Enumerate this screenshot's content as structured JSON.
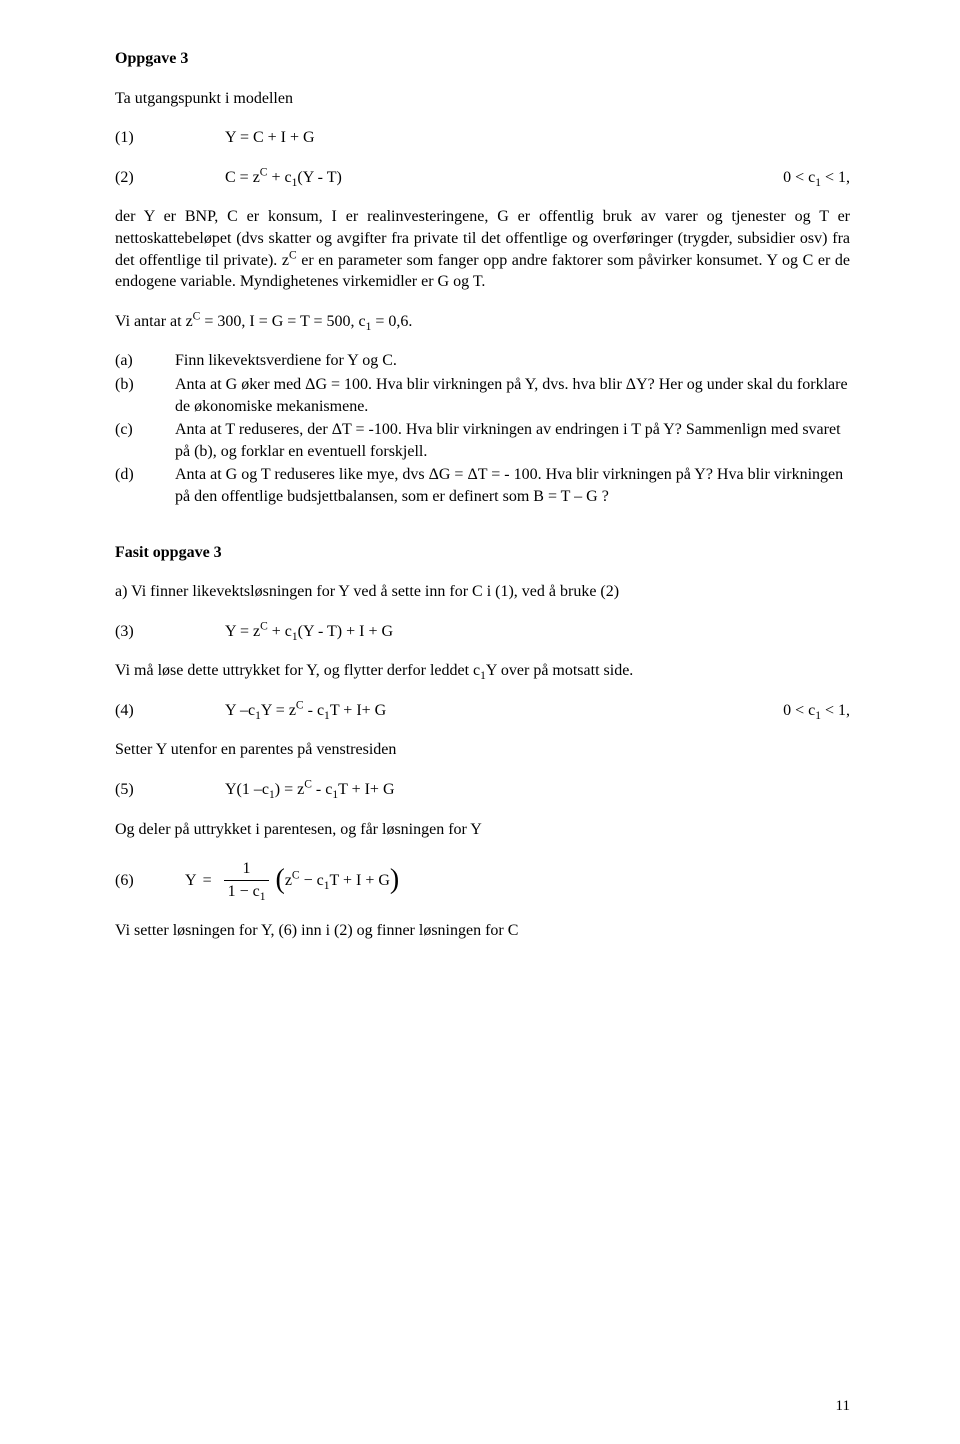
{
  "heading": "Oppgave 3",
  "intro": "Ta utgangspunkt i modellen",
  "eq1": {
    "label": "(1)",
    "expr": "Y = C + I + G"
  },
  "eq2": {
    "label": "(2)",
    "expr_html": "C = z<sup>C</sup> + c<sub>1</sub>(Y - T)",
    "cond_html": "0 &lt; c<sub>1</sub> &lt; 1,"
  },
  "para1_html": "der Y er BNP, C er konsum, I er realinvesteringene, G er offentlig bruk av varer og tjenester og T er nettoskattebeløpet (dvs skatter og avgifter fra private til det offentlige og overføringer (trygder, subsidier osv) fra det offentlige til private). z<sup>C</sup> er en parameter som fanger opp andre faktorer som påvirker konsumet. Y og C er de endogene variable. Myndighetenes virkemidler er G og T.",
  "para2_html": "Vi antar at z<sup>C</sup> = 300, I = G = T = 500, c<sub>1</sub> = 0,6.",
  "subs": [
    {
      "key": "(a)",
      "text_html": "Finn likevektsverdiene for Y og C."
    },
    {
      "key": "(b)",
      "text_html": "Anta at G øker med ΔG = 100. Hva blir virkningen på Y, dvs. hva blir ΔY? Her og under skal du forklare de økonomiske mekanismene."
    },
    {
      "key": "(c)",
      "text_html": "Anta at T reduseres, der ΔT = -100. Hva blir virkningen av endringen i T på Y? Sammenlign med svaret på (b), og forklar en eventuell forskjell."
    },
    {
      "key": "(d)",
      "text_html": "Anta at G og T reduseres like mye, dvs ΔG = ΔT = - 100. Hva blir virkningen på Y? Hva blir virkningen på den offentlige budsjettbalansen, som er definert som B = T – G ?"
    }
  ],
  "fasit_heading": "Fasit oppgave 3",
  "fasit_a": "a) Vi finner likevektsløsningen for Y ved å sette inn for C i (1), ved å bruke (2)",
  "eq3": {
    "label": "(3)",
    "expr_html": "Y = z<sup>C</sup> + c<sub>1</sub>(Y - T) + I + G"
  },
  "para3_html": "Vi må løse dette uttrykket for Y, og flytter derfor leddet c<sub>1</sub>Y over på motsatt side.",
  "eq4": {
    "label": "(4)",
    "expr_html": "Y –c<sub>1</sub>Y = z<sup>C</sup> - c<sub>1</sub>T + I+ G",
    "cond_html": "0 &lt; c<sub>1</sub> &lt; 1,"
  },
  "para4": "Setter Y utenfor en parentes på venstresiden",
  "eq5": {
    "label": "(5)",
    "expr_html": "Y(1 –c<sub>1</sub>) = z<sup>C</sup> - c<sub>1</sub>T + I+ G"
  },
  "para5": "Og deler på uttrykket i parentesen, og får løsningen for Y",
  "eq6": {
    "label": "(6)",
    "lead": "Y",
    "eq": "=",
    "frac_num": "1",
    "frac_den_html": "1 − c<sub>1</sub>",
    "paren_inner_html": "z<sup>C</sup> − c<sub>1</sub>T + I + G"
  },
  "para6": "Vi setter løsningen for Y, (6) inn i (2) og finner løsningen for C",
  "page_number": "11"
}
